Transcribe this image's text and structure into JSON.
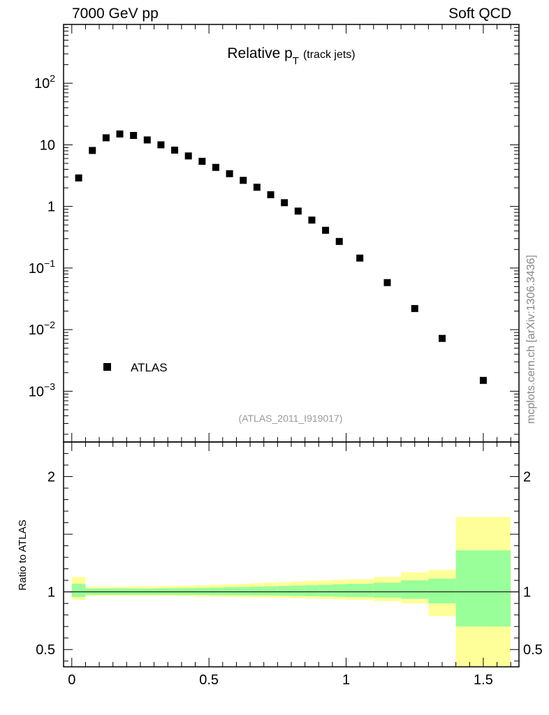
{
  "header": {
    "left": "7000 GeV pp",
    "right": "Soft QCD"
  },
  "side_label": "mcplots.cern.ch [arXiv:1306.3436]",
  "chart_data": [
    {
      "type": "scatter",
      "title_main": "Relative p",
      "title_sub": "T",
      "title_suffix": "(track jets)",
      "reference": "(ATLAS_2011_I919017)",
      "yscale": "log",
      "xlim": [
        -0.03,
        1.63
      ],
      "ylim": [
        0.00015,
        900
      ],
      "legend": [
        {
          "marker": "square",
          "label": "ATLAS"
        }
      ],
      "series": [
        {
          "name": "ATLAS",
          "x": [
            0.025,
            0.075,
            0.125,
            0.175,
            0.225,
            0.275,
            0.325,
            0.375,
            0.425,
            0.475,
            0.525,
            0.575,
            0.625,
            0.675,
            0.725,
            0.775,
            0.825,
            0.875,
            0.925,
            0.975,
            1.05,
            1.15,
            1.25,
            1.35,
            1.5
          ],
          "y": [
            2.9,
            8.1,
            13.0,
            15.0,
            14.2,
            12.0,
            10.0,
            8.2,
            6.6,
            5.4,
            4.3,
            3.4,
            2.65,
            2.05,
            1.55,
            1.15,
            0.84,
            0.6,
            0.41,
            0.27,
            0.145,
            0.058,
            0.022,
            0.0072,
            0.0015
          ]
        }
      ],
      "yticks": [
        {
          "value": 0.001,
          "mant": "10",
          "exp": "−3"
        },
        {
          "value": 0.01,
          "mant": "10",
          "exp": "−2"
        },
        {
          "value": 0.1,
          "mant": "10",
          "exp": "−1"
        },
        {
          "value": 1,
          "mant": "1",
          "exp": ""
        },
        {
          "value": 10,
          "mant": "10",
          "exp": ""
        },
        {
          "value": 100,
          "mant": "10",
          "exp": "2"
        }
      ]
    },
    {
      "type": "area",
      "ylabel": "Ratio to ATLAS",
      "xlim": [
        -0.03,
        1.63
      ],
      "ylim": [
        0.35,
        2.3
      ],
      "reference_line": 1,
      "yticks": [
        0.5,
        1,
        2
      ],
      "ytick_labels": [
        "0.5",
        "1",
        "2"
      ],
      "xticks": [
        0,
        0.5,
        1,
        1.5
      ],
      "xtick_labels": [
        "0",
        "0.5",
        "1",
        "1.5"
      ],
      "bands": [
        {
          "lo": 0.0,
          "hi": 0.05,
          "g_lo": 0.955,
          "g_hi": 1.07,
          "y_lo": 0.93,
          "y_hi": 1.13
        },
        {
          "lo": 0.05,
          "hi": 0.1,
          "g_lo": 0.975,
          "g_hi": 1.03,
          "y_lo": 0.965,
          "y_hi": 1.045
        },
        {
          "lo": 0.1,
          "hi": 0.15,
          "g_lo": 0.975,
          "g_hi": 1.03,
          "y_lo": 0.965,
          "y_hi": 1.045
        },
        {
          "lo": 0.15,
          "hi": 0.2,
          "g_lo": 0.975,
          "g_hi": 1.03,
          "y_lo": 0.965,
          "y_hi": 1.045
        },
        {
          "lo": 0.2,
          "hi": 0.25,
          "g_lo": 0.975,
          "g_hi": 1.03,
          "y_lo": 0.965,
          "y_hi": 1.047
        },
        {
          "lo": 0.25,
          "hi": 0.3,
          "g_lo": 0.975,
          "g_hi": 1.03,
          "y_lo": 0.965,
          "y_hi": 1.048
        },
        {
          "lo": 0.3,
          "hi": 0.35,
          "g_lo": 0.975,
          "g_hi": 1.031,
          "y_lo": 0.964,
          "y_hi": 1.05
        },
        {
          "lo": 0.35,
          "hi": 0.4,
          "g_lo": 0.975,
          "g_hi": 1.032,
          "y_lo": 0.963,
          "y_hi": 1.052
        },
        {
          "lo": 0.4,
          "hi": 0.45,
          "g_lo": 0.974,
          "g_hi": 1.033,
          "y_lo": 0.962,
          "y_hi": 1.055
        },
        {
          "lo": 0.45,
          "hi": 0.5,
          "g_lo": 0.973,
          "g_hi": 1.035,
          "y_lo": 0.96,
          "y_hi": 1.058
        },
        {
          "lo": 0.5,
          "hi": 0.55,
          "g_lo": 0.972,
          "g_hi": 1.037,
          "y_lo": 0.958,
          "y_hi": 1.062
        },
        {
          "lo": 0.55,
          "hi": 0.6,
          "g_lo": 0.971,
          "g_hi": 1.04,
          "y_lo": 0.956,
          "y_hi": 1.066
        },
        {
          "lo": 0.6,
          "hi": 0.65,
          "g_lo": 0.97,
          "g_hi": 1.042,
          "y_lo": 0.954,
          "y_hi": 1.07
        },
        {
          "lo": 0.65,
          "hi": 0.7,
          "g_lo": 0.969,
          "g_hi": 1.045,
          "y_lo": 0.952,
          "y_hi": 1.075
        },
        {
          "lo": 0.7,
          "hi": 0.75,
          "g_lo": 0.968,
          "g_hi": 1.048,
          "y_lo": 0.95,
          "y_hi": 1.08
        },
        {
          "lo": 0.75,
          "hi": 0.8,
          "g_lo": 0.966,
          "g_hi": 1.051,
          "y_lo": 0.948,
          "y_hi": 1.085
        },
        {
          "lo": 0.8,
          "hi": 0.85,
          "g_lo": 0.964,
          "g_hi": 1.055,
          "y_lo": 0.945,
          "y_hi": 1.09
        },
        {
          "lo": 0.85,
          "hi": 0.9,
          "g_lo": 0.962,
          "g_hi": 1.058,
          "y_lo": 0.942,
          "y_hi": 1.095
        },
        {
          "lo": 0.9,
          "hi": 0.95,
          "g_lo": 0.96,
          "g_hi": 1.062,
          "y_lo": 0.938,
          "y_hi": 1.1
        },
        {
          "lo": 0.95,
          "hi": 1.0,
          "g_lo": 0.958,
          "g_hi": 1.066,
          "y_lo": 0.935,
          "y_hi": 1.105
        },
        {
          "lo": 1.0,
          "hi": 1.1,
          "g_lo": 0.955,
          "g_hi": 1.07,
          "y_lo": 0.93,
          "y_hi": 1.11
        },
        {
          "lo": 1.1,
          "hi": 1.2,
          "g_lo": 0.95,
          "g_hi": 1.08,
          "y_lo": 0.92,
          "y_hi": 1.13
        },
        {
          "lo": 1.2,
          "hi": 1.3,
          "g_lo": 0.94,
          "g_hi": 1.1,
          "y_lo": 0.9,
          "y_hi": 1.17
        },
        {
          "lo": 1.3,
          "hi": 1.4,
          "g_lo": 0.9,
          "g_hi": 1.115,
          "y_lo": 0.79,
          "y_hi": 1.19
        },
        {
          "lo": 1.4,
          "hi": 1.6,
          "g_lo": 0.7,
          "g_hi": 1.36,
          "y_lo": 0.35,
          "y_hi": 1.65
        }
      ],
      "colors": {
        "inner": "#99ff99",
        "outer": "#ffff99"
      }
    }
  ]
}
